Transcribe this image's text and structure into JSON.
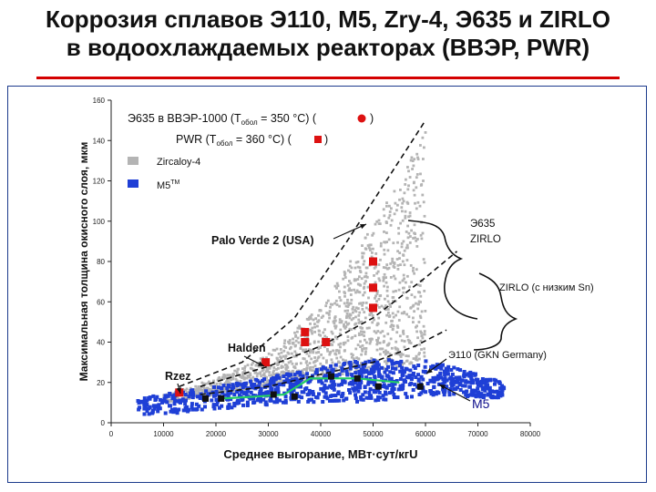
{
  "slide": {
    "title_line1": "Коррозия сплавов Э110, М5, Zry-4, Э635 и ZIRLO",
    "title_line2": "в водоохлаждаемых реакторах (ВВЭР, PWR)"
  },
  "colors": {
    "zircaloy": "#b4b4b4",
    "m5": "#1f3fd6",
    "red": "#dd1111",
    "e110_line": "#22cc66",
    "title_rule": "#d40000"
  },
  "chart_data": {
    "type": "scatter",
    "xlabel": "Среднее выгорание, МВт·сут/кгU",
    "ylabel": "Максимальная толщина окисного слоя, мкм",
    "xlim": [
      0,
      80000
    ],
    "ylim": [
      0,
      160
    ],
    "xticks": [
      0,
      10000,
      20000,
      30000,
      40000,
      50000,
      60000,
      70000,
      80000
    ],
    "xtick_labels": [
      "0",
      "10000",
      "20000",
      "30000",
      "40000",
      "50000",
      "60000",
      "70000",
      "80000"
    ],
    "yticks": [
      0,
      20,
      40,
      60,
      80,
      100,
      120,
      140,
      160
    ],
    "ytick_labels": [
      "0",
      "20",
      "40",
      "60",
      "80",
      "100",
      "120",
      "140",
      "160"
    ],
    "grid": false,
    "legend": {
      "placement": "top-left",
      "entries": [
        {
          "text": "Э635 в ВВЭР-1000 (T",
          "sub": "обол",
          "text2": " = 350 °C) (",
          "marker": "red-circle",
          "text3": ")"
        },
        {
          "text": "PWR (T",
          "sub": "обол",
          "text2": " = 360 °C) (",
          "marker": "red-square",
          "text3": ")"
        },
        {
          "text": "Zircaloy-4",
          "marker": "grey-square"
        },
        {
          "text": "M5",
          "sup": "TM",
          "marker": "blue-square"
        }
      ]
    },
    "series": [
      {
        "name": "Zircaloy-4",
        "marker": "dots",
        "color": "#b4b4b4",
        "envelope": {
          "x": [
            10000,
            20000,
            30000,
            40000,
            45000,
            50000,
            55000,
            58000,
            60000
          ],
          "y_low": [
            10,
            14,
            18,
            22,
            24,
            26,
            28,
            30,
            32
          ],
          "y_high": [
            14,
            22,
            34,
            58,
            78,
            100,
            120,
            135,
            145
          ]
        }
      },
      {
        "name": "M5TM",
        "marker": "square",
        "color": "#1f3fd6",
        "envelope": {
          "x": [
            5000,
            15000,
            25000,
            35000,
            45000,
            55000,
            62000,
            75000
          ],
          "y_low": [
            4,
            5,
            8,
            10,
            10,
            12,
            14,
            12
          ],
          "y_high": [
            12,
            16,
            20,
            25,
            30,
            32,
            30,
            20
          ]
        }
      },
      {
        "name": "PWR (red squares)",
        "marker": "square",
        "color": "#dd1111",
        "x": [
          13000,
          29500,
          37000,
          37000,
          41000,
          50000,
          50000,
          50000
        ],
        "y": [
          15,
          30,
          40,
          45,
          40,
          80,
          67,
          57
        ]
      },
      {
        "name": "Э110 line",
        "marker": "line",
        "color": "#22cc66",
        "x": [
          21000,
          28000,
          33000,
          38000,
          47000,
          55000
        ],
        "y": [
          12,
          13,
          14,
          22,
          22,
          20
        ]
      },
      {
        "name": "Э110 black markers",
        "marker": "square",
        "color": "#111111",
        "x": [
          18000,
          21000,
          31000,
          35000,
          42000,
          47000,
          51000,
          59000
        ],
        "y": [
          12,
          12,
          14,
          13,
          23,
          22,
          18,
          18
        ]
      }
    ],
    "envelope_curves": [
      {
        "name": "upper",
        "x": [
          13000,
          25000,
          35000,
          45000,
          55000,
          60000
        ],
        "y": [
          18,
          30,
          52,
          90,
          130,
          150
        ]
      },
      {
        "name": "middle",
        "x": [
          17000,
          30000,
          40000,
          50000,
          60000,
          66000
        ],
        "y": [
          18,
          28,
          38,
          52,
          72,
          85
        ]
      },
      {
        "name": "lower",
        "x": [
          17000,
          30000,
          40000,
          50000,
          58000,
          64000
        ],
        "y": [
          14,
          18,
          24,
          30,
          38,
          46
        ]
      }
    ],
    "annotations": [
      {
        "text": "Palo Verde 2 (USA)"
      },
      {
        "text": "Э635"
      },
      {
        "text": "ZIRLO"
      },
      {
        "text": "ZIRLO (с низким Sn)"
      },
      {
        "text": "Halden"
      },
      {
        "text": "Э110 (GKN Germany)"
      },
      {
        "text": "Rzez"
      },
      {
        "text": "M5"
      }
    ]
  }
}
